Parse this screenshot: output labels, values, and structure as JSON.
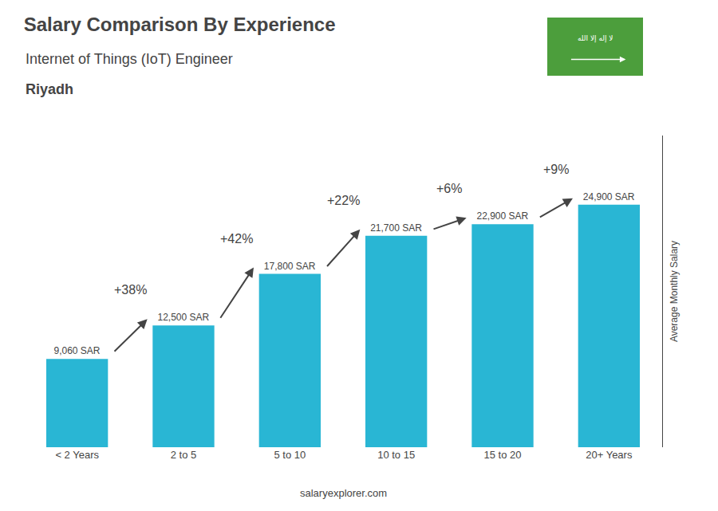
{
  "chart_data": {
    "type": "bar",
    "title": "Salary Comparison By Experience",
    "subtitle": "Internet of Things (IoT) Engineer",
    "ylabel": "Average Monthly Salary",
    "categories": [
      "< 2 Years",
      "2 to 5",
      "5 to 10",
      "10 to 15",
      "15 to 20",
      "20+ Years"
    ],
    "values": [
      9060,
      12500,
      17800,
      21700,
      22900,
      24900
    ],
    "value_labels": [
      "9,060 SAR",
      "12,500 SAR",
      "17,800 SAR",
      "21,700 SAR",
      "22,900 SAR",
      "24,900 SAR"
    ],
    "data_labels": true,
    "color": "#29b6d4",
    "ylim": [
      0,
      32000
    ],
    "grid": false,
    "tick_labels": "x",
    "annotations": [
      {
        "text": "+38%",
        "from": "< 2 Years",
        "to": "2 to 5"
      },
      {
        "text": "+42%",
        "from": "2 to 5",
        "to": "5 to 10"
      },
      {
        "text": "+22%",
        "from": "5 to 10",
        "to": "10 to 15"
      },
      {
        "text": "+6%",
        "from": "10 to 15",
        "to": "15 to 20"
      },
      {
        "text": "+9%",
        "from": "15 to 20",
        "to": "20+ Years"
      },
      {
        "text": "Riyadh"
      },
      {
        "text": "salaryexplorer.com"
      },
      {
        "text": "لا إله إلا الله"
      }
    ]
  }
}
